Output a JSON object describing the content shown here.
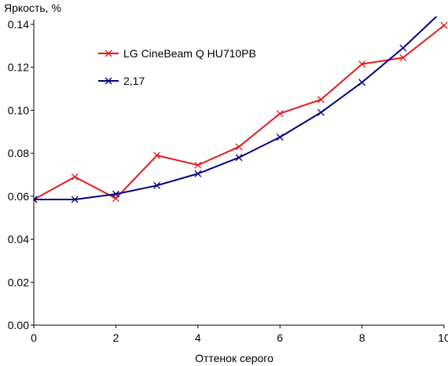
{
  "chart_data": {
    "type": "line",
    "ylabel": "Яркость, %",
    "xlabel": "Оттенок серого",
    "xlim": [
      0,
      10
    ],
    "ylim": [
      0,
      0.14
    ],
    "x_ticks": [
      "0",
      "2",
      "4",
      "6",
      "8",
      "10"
    ],
    "y_ticks": [
      "0.00",
      "0.02",
      "0.04",
      "0.06",
      "0.08",
      "0.10",
      "0.12",
      "0.14"
    ],
    "grid": false,
    "legend_position": "top-left",
    "series": [
      {
        "name": "LG CineBeam Q HU710PB",
        "color": "#e41a1c",
        "marker": "x",
        "x": [
          0,
          1,
          2,
          3,
          4,
          5,
          6,
          7,
          8,
          9,
          10
        ],
        "values": [
          0.0585,
          0.069,
          0.059,
          0.079,
          0.0745,
          0.083,
          0.0985,
          0.105,
          0.1215,
          0.1245,
          0.1395
        ]
      },
      {
        "name": "2,17",
        "color": "#000080",
        "marker": "x",
        "x": [
          0,
          1,
          2,
          3,
          4,
          5,
          6,
          7,
          8,
          9,
          10
        ],
        "values": [
          0.0585,
          0.0585,
          0.061,
          0.065,
          0.0705,
          0.078,
          0.0875,
          0.099,
          0.113,
          0.129,
          0.147
        ]
      }
    ]
  }
}
